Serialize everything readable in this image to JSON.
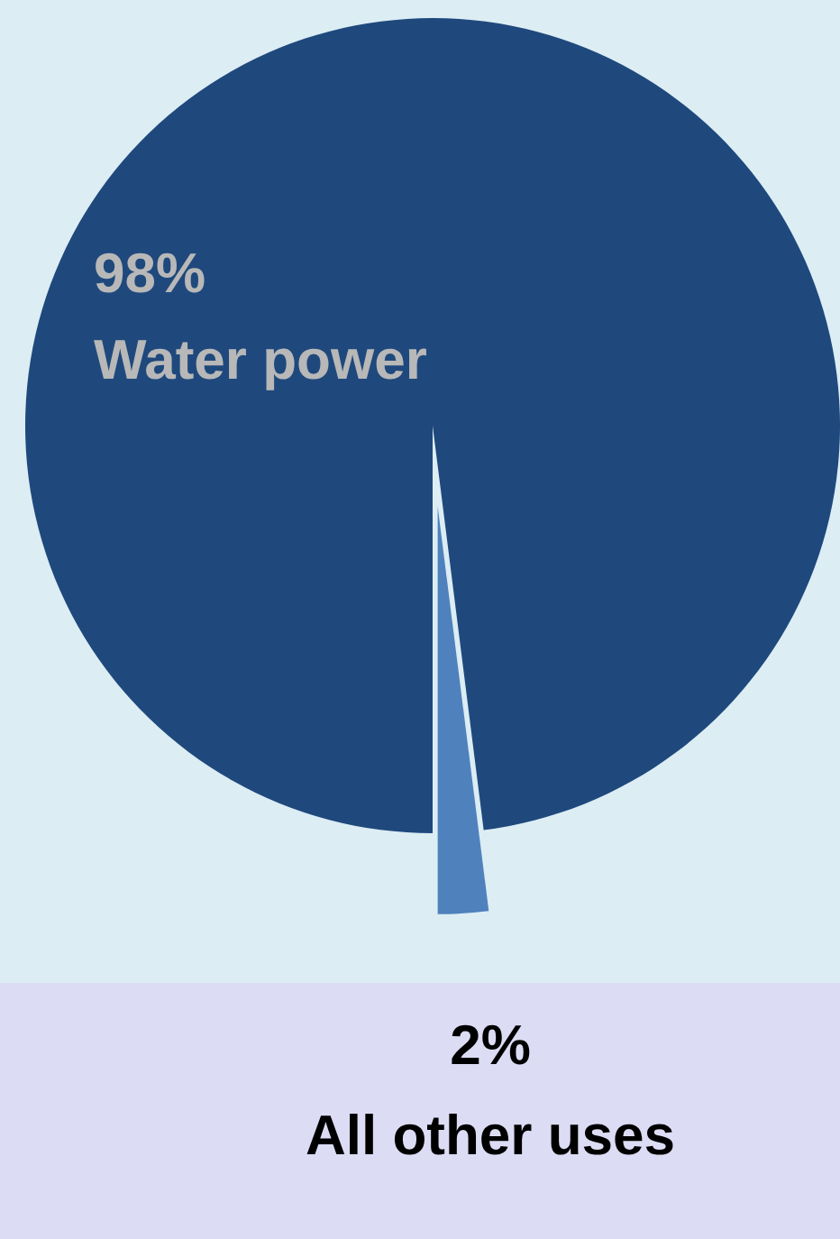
{
  "chart_data": {
    "type": "pie",
    "categories": [
      "Water power",
      "All other uses"
    ],
    "values": [
      98,
      2
    ],
    "colors": [
      "#1f497d",
      "#4f81bd"
    ],
    "value_labels": [
      "98%",
      "2%"
    ]
  }
}
